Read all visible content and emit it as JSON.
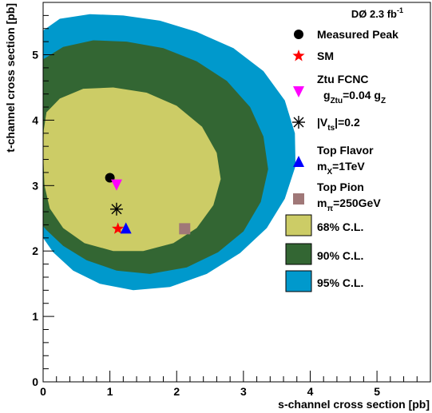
{
  "colors": {
    "cl95": "#0099cc",
    "cl90": "#336633",
    "cl68": "#cccc66",
    "measured": "#000000",
    "sm": "#ff0000",
    "ztu": "#ff00ff",
    "vts": "#000000",
    "topflavor": "#0000ff",
    "toppion": "#a07878"
  },
  "chart_data": {
    "type": "scatter",
    "xlabel": "s-channel cross section [pb]",
    "ylabel": "t-channel cross section [pb]",
    "xlim": [
      0,
      5.8
    ],
    "ylim": [
      0,
      5.8
    ],
    "x_ticks": [
      "0",
      "1",
      "2",
      "3",
      "4",
      "5"
    ],
    "y_ticks": [
      "0",
      "1",
      "2",
      "3",
      "4",
      "5"
    ],
    "experiment_label": {
      "main": "DØ 2.3 fb",
      "sup": "-1"
    },
    "legend_position": "right",
    "points": [
      {
        "name": "Measured Peak",
        "x": 1.0,
        "y": 3.12,
        "marker": "circle",
        "color": "#000000"
      },
      {
        "name": "SM",
        "x": 1.12,
        "y": 2.34,
        "marker": "star",
        "color": "#ff0000"
      },
      {
        "name": "Ztu FCNC",
        "x": 1.1,
        "y": 3.02,
        "marker": "triangle-down",
        "color": "#ff00ff"
      },
      {
        "name": "|Vts|=0.2",
        "x": 1.1,
        "y": 2.64,
        "marker": "asterisk",
        "color": "#000000"
      },
      {
        "name": "Top Flavor",
        "x": 1.24,
        "y": 2.34,
        "marker": "triangle-up",
        "color": "#0000ff"
      },
      {
        "name": "Top Pion",
        "x": 2.12,
        "y": 2.34,
        "marker": "square",
        "color": "#a07878"
      }
    ],
    "contours": [
      {
        "name": "95% C.L.",
        "color": "#0099cc",
        "polygon": [
          [
            0.0,
            5.37
          ],
          [
            0.25,
            5.55
          ],
          [
            0.7,
            5.62
          ],
          [
            1.2,
            5.6
          ],
          [
            1.75,
            5.52
          ],
          [
            2.3,
            5.35
          ],
          [
            2.85,
            5.1
          ],
          [
            3.3,
            4.75
          ],
          [
            3.62,
            4.3
          ],
          [
            3.77,
            3.8
          ],
          [
            3.78,
            3.3
          ],
          [
            3.62,
            2.8
          ],
          [
            3.35,
            2.35
          ],
          [
            2.95,
            1.97
          ],
          [
            2.45,
            1.65
          ],
          [
            1.9,
            1.45
          ],
          [
            1.35,
            1.4
          ],
          [
            0.85,
            1.5
          ],
          [
            0.45,
            1.7
          ],
          [
            0.15,
            1.98
          ],
          [
            0.0,
            2.2
          ]
        ]
      },
      {
        "name": "90% C.L.",
        "color": "#336633",
        "polygon": [
          [
            0.0,
            4.93
          ],
          [
            0.3,
            5.12
          ],
          [
            0.75,
            5.22
          ],
          [
            1.25,
            5.2
          ],
          [
            1.8,
            5.1
          ],
          [
            2.3,
            4.9
          ],
          [
            2.75,
            4.6
          ],
          [
            3.1,
            4.2
          ],
          [
            3.3,
            3.75
          ],
          [
            3.37,
            3.25
          ],
          [
            3.26,
            2.75
          ],
          [
            3.0,
            2.3
          ],
          [
            2.62,
            1.98
          ],
          [
            2.15,
            1.75
          ],
          [
            1.6,
            1.65
          ],
          [
            1.1,
            1.7
          ],
          [
            0.65,
            1.86
          ],
          [
            0.3,
            2.08
          ],
          [
            0.05,
            2.32
          ],
          [
            0.0,
            2.38
          ]
        ]
      },
      {
        "name": "68% C.L.",
        "color": "#cccc66",
        "polygon": [
          [
            0.05,
            4.12
          ],
          [
            0.25,
            4.33
          ],
          [
            0.6,
            4.48
          ],
          [
            1.05,
            4.5
          ],
          [
            1.55,
            4.42
          ],
          [
            2.0,
            4.22
          ],
          [
            2.38,
            3.9
          ],
          [
            2.6,
            3.5
          ],
          [
            2.66,
            3.1
          ],
          [
            2.55,
            2.7
          ],
          [
            2.3,
            2.35
          ],
          [
            1.95,
            2.12
          ],
          [
            1.5,
            2.0
          ],
          [
            1.05,
            2.0
          ],
          [
            0.62,
            2.12
          ],
          [
            0.3,
            2.35
          ],
          [
            0.1,
            2.65
          ],
          [
            0.02,
            3.0
          ],
          [
            0.0,
            3.5
          ],
          [
            0.01,
            3.85
          ]
        ]
      }
    ],
    "legend": [
      {
        "label": "Measured Peak",
        "marker": "circle",
        "color": "#000000"
      },
      {
        "label": "SM",
        "marker": "star",
        "color": "#ff0000"
      },
      {
        "label_main": "Ztu FCNC",
        "label_sub": "g",
        "label_sub_index": "Ztu",
        "label_sub_rest": "=0.04 g",
        "label_sub_index2": "Z",
        "marker": "triangle-down",
        "color": "#ff00ff"
      },
      {
        "label_pre": "|V",
        "label_index": "ts",
        "label_post": "|=0.2",
        "marker": "asterisk",
        "color": "#000000"
      },
      {
        "label_main": "Top Flavor",
        "label_sub": "m",
        "label_sub_index": "X",
        "label_sub_rest": "=1TeV",
        "marker": "triangle-up",
        "color": "#0000ff"
      },
      {
        "label_main": "Top Pion",
        "label_sub": "m",
        "label_sub_index": "π",
        "label_sub_rest": "=250GeV",
        "marker": "square",
        "color": "#a07878"
      },
      {
        "label": "68% C.L.",
        "marker": "box",
        "color": "#cccc66"
      },
      {
        "label": "90% C.L.",
        "marker": "box",
        "color": "#336633"
      },
      {
        "label": "95% C.L.",
        "marker": "box",
        "color": "#0099cc"
      }
    ]
  }
}
